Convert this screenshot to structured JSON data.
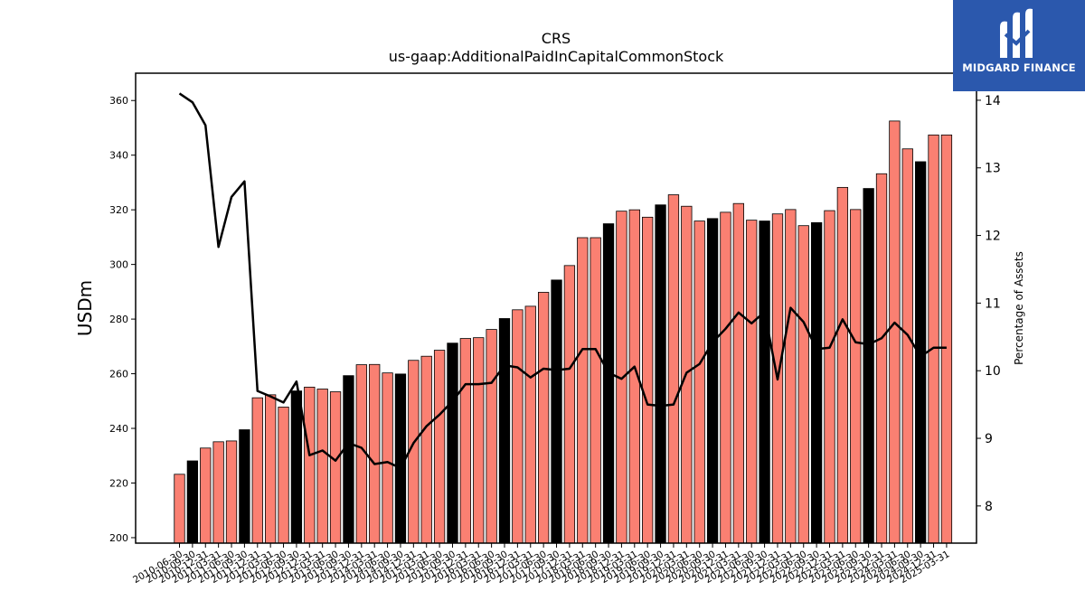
{
  "brand": {
    "name": "MIDGARD FINANCE",
    "bg_color": "#2b58ad"
  },
  "chart_data": {
    "type": "bar",
    "title": "CRS",
    "subtitle": "us-gaap:AdditionalPaidInCapitalCommonStock",
    "ylabel": "USDm",
    "y2label": "Percentage of Assets",
    "ylim": [
      198,
      370
    ],
    "y2lim": [
      7.45,
      14.4
    ],
    "yticks": [
      200,
      220,
      240,
      260,
      280,
      300,
      320,
      340,
      360
    ],
    "y2ticks": [
      8,
      9,
      10,
      11,
      12,
      13,
      14
    ],
    "bar_color": "#fa8072",
    "highlight_color": "#000000",
    "line_color": "#000000",
    "categories": [
      "2010-06-30",
      "2010-09-30",
      "2010-12-31",
      "2011-03-31",
      "2011-06-30",
      "2011-09-30",
      "2011-12-31",
      "2012-03-31",
      "2012-06-30",
      "2012-09-30",
      "2012-12-31",
      "2013-03-31",
      "2013-06-30",
      "2013-09-30",
      "2013-12-31",
      "2014-03-31",
      "2014-06-30",
      "2014-09-30",
      "2014-12-31",
      "2015-03-31",
      "2015-06-30",
      "2015-09-30",
      "2015-12-31",
      "2016-03-31",
      "2016-06-30",
      "2016-09-30",
      "2016-12-31",
      "2017-03-31",
      "2017-06-30",
      "2017-09-30",
      "2017-12-31",
      "2018-03-31",
      "2018-06-30",
      "2018-09-30",
      "2018-12-31",
      "2019-03-31",
      "2019-06-30",
      "2019-09-30",
      "2019-12-31",
      "2020-03-31",
      "2020-06-30",
      "2020-09-30",
      "2020-12-31",
      "2021-03-31",
      "2021-06-30",
      "2021-09-30",
      "2021-12-31",
      "2022-03-31",
      "2022-06-30",
      "2022-09-30",
      "2022-12-31",
      "2023-03-31",
      "2023-06-30",
      "2023-09-30",
      "2023-12-31",
      "2024-03-31",
      "2024-06-30",
      "2024-09-30",
      "2024-12-31",
      "2025-03-31"
    ],
    "series": [
      {
        "name": "",
        "type": "bar",
        "axis": "left",
        "values": [
          223.2,
          228.1,
          232.8,
          235.1,
          235.4,
          239.5,
          251.2,
          252.3,
          247.8,
          253.7,
          255.1,
          254.4,
          253.4,
          259.3,
          263.3,
          263.4,
          260.3,
          259.9,
          264.9,
          266.4,
          268.6,
          271.2,
          272.9,
          273.2,
          276.2,
          280.2,
          283.4,
          284.7,
          289.8,
          294.3,
          299.6,
          309.8,
          309.8,
          314.9,
          319.5,
          320.0,
          317.3,
          321.8,
          325.5,
          321.3,
          315.9,
          316.8,
          319.1,
          322.3,
          316.2,
          315.9,
          318.5,
          320.1,
          314.2,
          315.3,
          319.7,
          328.2,
          320.1,
          327.8,
          333.2,
          352.5,
          342.3,
          337.6,
          347.4,
          347.4
        ],
        "highlight_indices": [
          1,
          5,
          9,
          13,
          17,
          21,
          25,
          29,
          33,
          37,
          41,
          45,
          49,
          53,
          57
        ]
      },
      {
        "name": "",
        "type": "line",
        "axis": "right",
        "values": [
          14.1,
          13.97,
          13.63,
          11.83,
          12.57,
          12.8,
          9.7,
          9.62,
          9.53,
          9.84,
          8.75,
          8.82,
          8.67,
          8.93,
          8.86,
          8.62,
          8.65,
          8.56,
          8.93,
          9.18,
          9.35,
          9.55,
          9.8,
          9.8,
          9.82,
          10.08,
          10.05,
          9.9,
          10.03,
          10.01,
          10.03,
          10.32,
          10.32,
          9.97,
          9.88,
          10.06,
          9.5,
          9.48,
          9.5,
          9.97,
          10.1,
          10.42,
          10.62,
          10.86,
          10.7,
          10.87,
          9.87,
          10.93,
          10.72,
          10.32,
          10.34,
          10.76,
          10.42,
          10.39,
          10.48,
          10.71,
          10.53,
          10.21,
          10.34,
          10.34
        ]
      }
    ]
  }
}
